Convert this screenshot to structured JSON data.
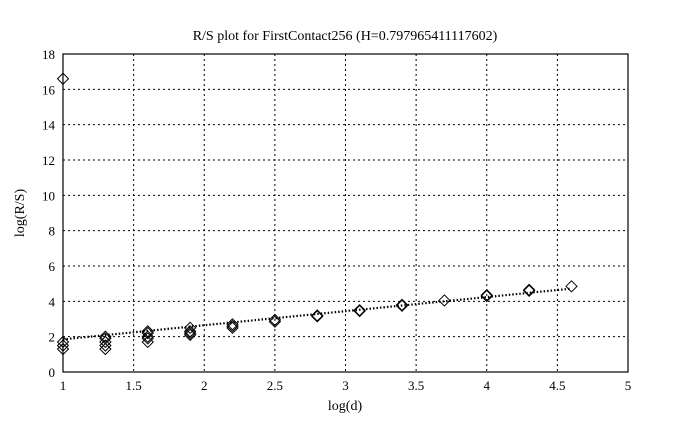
{
  "chart_data": {
    "type": "scatter",
    "title": "R/S plot for FirstContact256 (H=0.797965411117602)",
    "xlabel": "log(d)",
    "ylabel": "log(R/S)",
    "xlim": [
      1,
      5
    ],
    "ylim": [
      0,
      18
    ],
    "xticks": [
      "1",
      "1.5",
      "2",
      "2.5",
      "3",
      "3.5",
      "4",
      "4.5",
      "5"
    ],
    "yticks": [
      "0",
      "2",
      "4",
      "6",
      "8",
      "10",
      "12",
      "14",
      "16",
      "18"
    ],
    "grid": true,
    "marker": "diamond",
    "points": [
      [
        1.0,
        16.6
      ],
      [
        1.0,
        1.3
      ],
      [
        1.0,
        1.5
      ],
      [
        1.0,
        1.7
      ],
      [
        1.3,
        1.3
      ],
      [
        1.3,
        1.5
      ],
      [
        1.3,
        1.7
      ],
      [
        1.3,
        1.9
      ],
      [
        1.3,
        2.0
      ],
      [
        1.6,
        1.7
      ],
      [
        1.6,
        1.9
      ],
      [
        1.6,
        2.0
      ],
      [
        1.6,
        2.2
      ],
      [
        1.6,
        2.3
      ],
      [
        1.9,
        2.1
      ],
      [
        1.9,
        2.2
      ],
      [
        1.9,
        2.3
      ],
      [
        1.9,
        2.5
      ],
      [
        2.2,
        2.5
      ],
      [
        2.2,
        2.6
      ],
      [
        2.2,
        2.7
      ],
      [
        2.5,
        2.85
      ],
      [
        2.5,
        2.95
      ],
      [
        2.8,
        3.15
      ],
      [
        2.8,
        3.2
      ],
      [
        3.1,
        3.45
      ],
      [
        3.1,
        3.5
      ],
      [
        3.4,
        3.75
      ],
      [
        3.4,
        3.8
      ],
      [
        3.7,
        4.05
      ],
      [
        4.0,
        4.3
      ],
      [
        4.0,
        4.35
      ],
      [
        4.3,
        4.6
      ],
      [
        4.3,
        4.65
      ],
      [
        4.6,
        4.85
      ]
    ],
    "fit_line": {
      "x": [
        1.0,
        4.6
      ],
      "y": [
        1.85,
        4.72
      ],
      "style": "dotted"
    }
  }
}
